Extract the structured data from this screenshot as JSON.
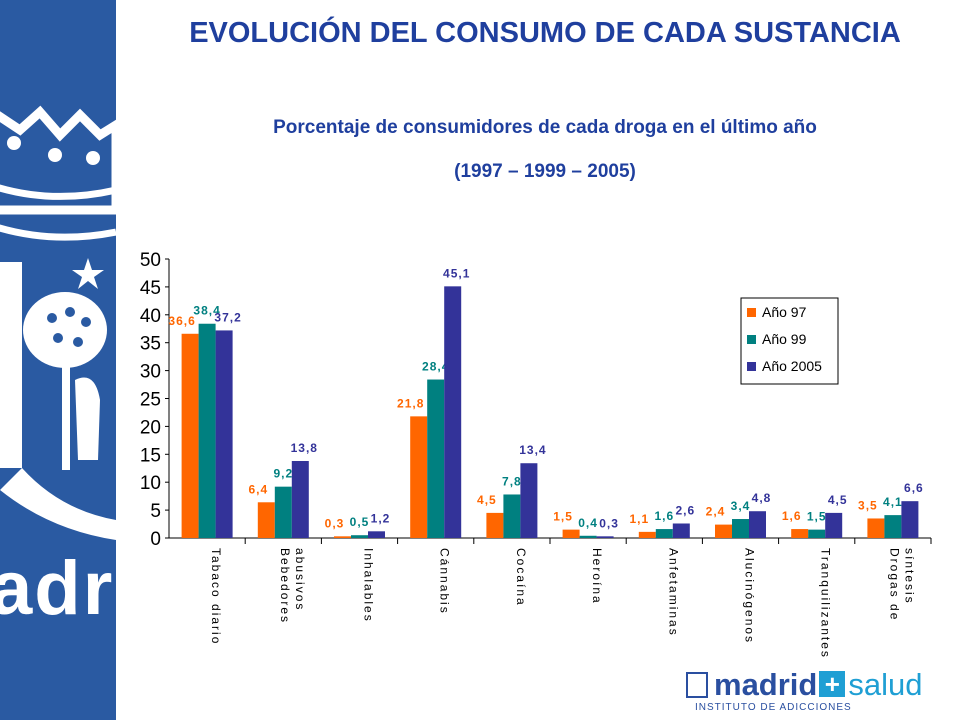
{
  "header": {
    "title": "EVOLUCIÓN DEL CONSUMO DE CADA SUSTANCIA",
    "subtitle": "Porcentaje de consumidores de cada droga en el último año",
    "years": "(1997 – 1999 – 2005)"
  },
  "brand": {
    "sidebar_word": "adrid",
    "logo_left": "madrid",
    "logo_plus": "+",
    "logo_right": "salud",
    "logo_sub": "INSTITUTO DE ADICCIONES",
    "blue": "#2a5aa2"
  },
  "chart_data": {
    "type": "bar",
    "categories": [
      "Tabaco diario",
      "Bebedores abusivos",
      "Inhalables",
      "Cánnabis",
      "Cocaína",
      "Heroína",
      "Anfetaminas",
      "Alucinógenos",
      "Tranquilizantes",
      "Drogas de síntesis"
    ],
    "series": [
      {
        "name": "Año 97",
        "color": "#ff6600",
        "values": [
          36.6,
          6.4,
          0.3,
          21.8,
          4.5,
          1.5,
          1.1,
          2.4,
          1.6,
          3.5
        ],
        "labels": [
          "36,6",
          "6,4",
          "0,3",
          "21,8",
          "4,5",
          "1,5",
          "1,1",
          "2,4",
          "1,6",
          "3,5"
        ]
      },
      {
        "name": "Año 99",
        "color": "#008080",
        "values": [
          38.4,
          9.2,
          0.5,
          28.4,
          7.8,
          0.4,
          1.6,
          3.4,
          1.5,
          4.1
        ],
        "labels": [
          "38,4",
          "9,2",
          "0,5",
          "28,4",
          "7,8",
          "0,4",
          "1,6",
          "3,4",
          "1,5",
          "4,1"
        ]
      },
      {
        "name": "Año 2005",
        "color": "#333399",
        "values": [
          37.2,
          13.8,
          1.2,
          45.1,
          13.4,
          0.3,
          2.6,
          4.8,
          4.5,
          6.6
        ],
        "labels": [
          "37,2",
          "13,8",
          "1,2",
          "45,1",
          "13,4",
          "0,3",
          "2,6",
          "4,8",
          "4,5",
          "6,6"
        ]
      }
    ],
    "yticks": [
      "0",
      "5",
      "10",
      "15",
      "20",
      "25",
      "30",
      "35",
      "40",
      "45",
      "50"
    ],
    "ylim": [
      0,
      50
    ],
    "grid": false,
    "legend": "top-right"
  }
}
